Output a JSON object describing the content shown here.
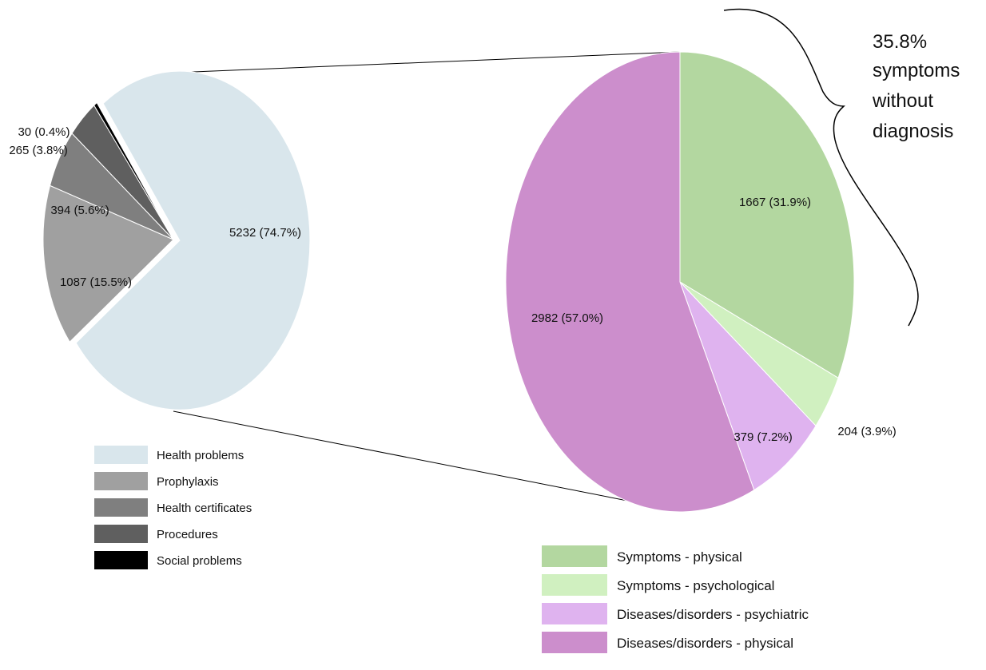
{
  "chart_data": [
    {
      "type": "pie",
      "title": "",
      "categories": [
        "Health problems",
        "Prophylaxis",
        "Health certificates",
        "Procedures",
        "Social problems"
      ],
      "values": [
        5232,
        1087,
        394,
        265,
        30
      ],
      "labels": [
        "5232 (74.7%)",
        "1087 (15.5%)",
        "394 (5.6%)",
        "265 (3.8%)",
        "30 (0.4%)"
      ],
      "colors": [
        "#d9e6ec",
        "#a0a0a0",
        "#7f7f7f",
        "#5f5f5f",
        "#000000"
      ],
      "exploded": "Health problems",
      "legend_position": "bottom-left"
    },
    {
      "type": "pie",
      "title": "",
      "categories": [
        "Symptoms - physical",
        "Symptoms - psychological",
        "Diseases/disorders - psychiatric",
        "Diseases/disorders - physical"
      ],
      "values": [
        1667,
        204,
        379,
        2982
      ],
      "labels": [
        "1667 (31.9%)",
        "204 (3.9%)",
        "379 (7.2%)",
        "2982 (57.0%)"
      ],
      "colors": [
        "#b3d7a0",
        "#d0f0c0",
        "#dfb3ef",
        "#cc8ecc"
      ],
      "legend_position": "bottom"
    }
  ],
  "annotation": {
    "lines": [
      "35.8%",
      "symptoms",
      "without",
      "diagnosis"
    ]
  }
}
